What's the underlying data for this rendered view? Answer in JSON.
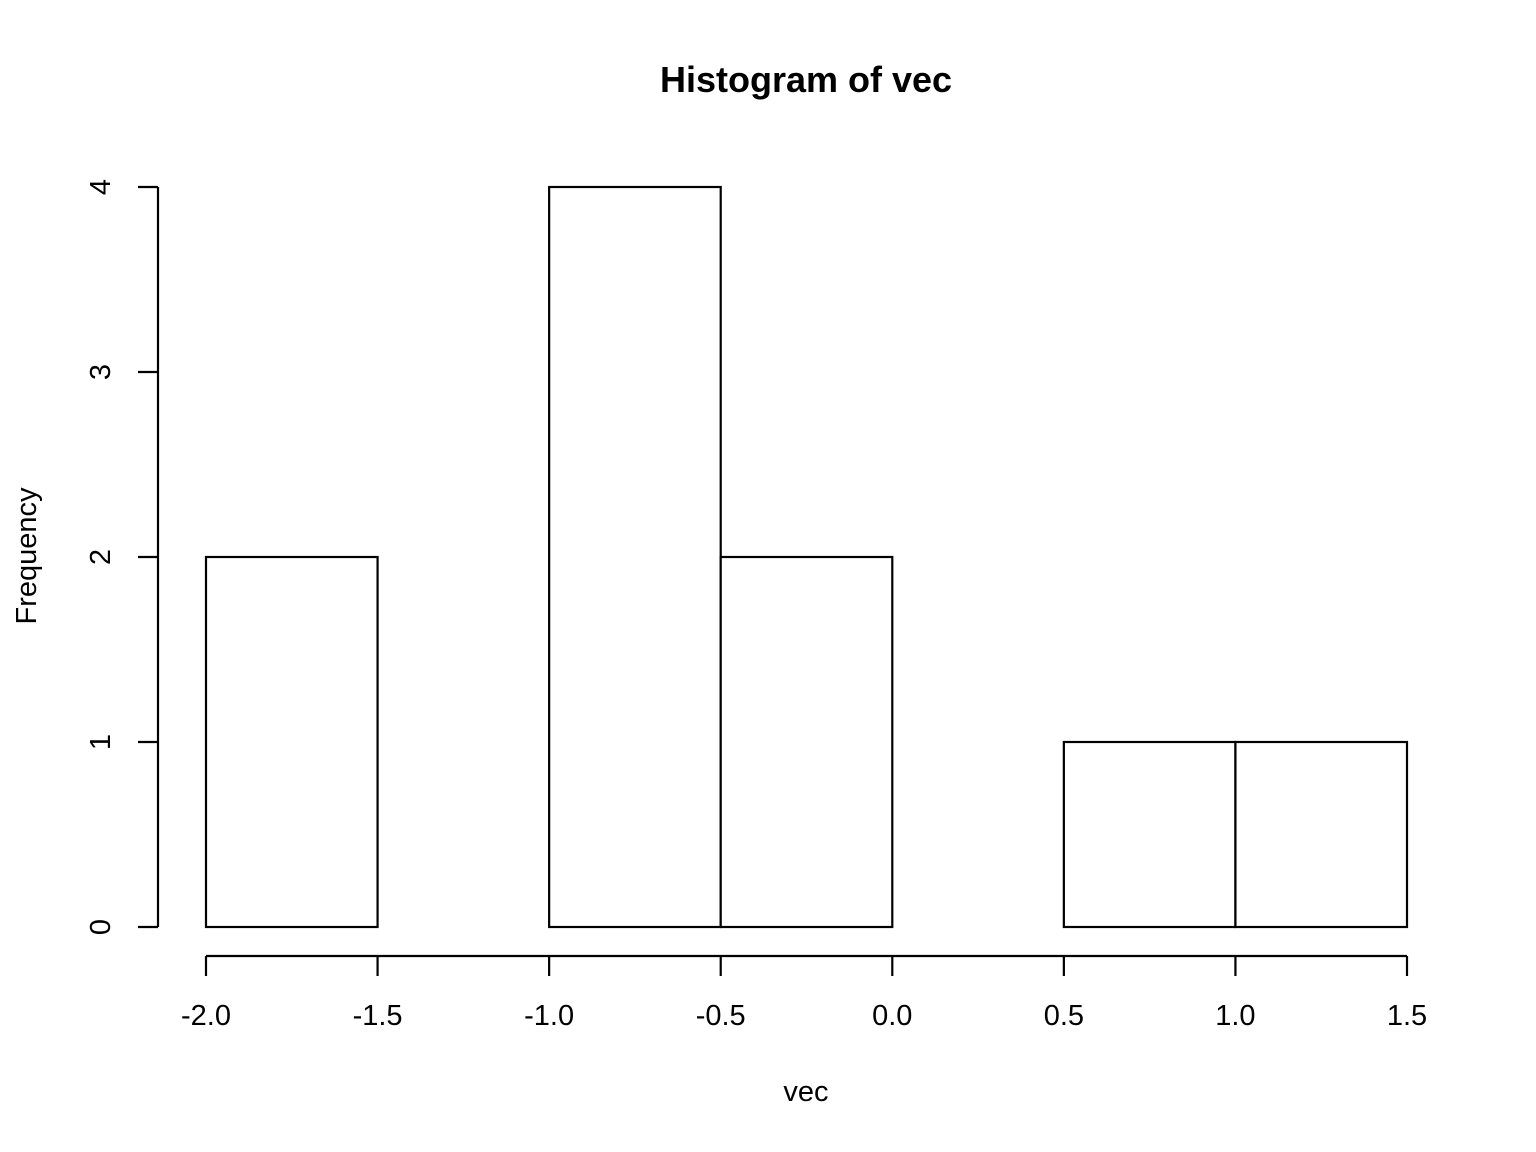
{
  "chart_data": {
    "type": "bar",
    "title": "Histogram of vec",
    "xlabel": "vec",
    "ylabel": "Frequency",
    "bins": [
      {
        "from": -2.0,
        "to": -1.5,
        "count": 2
      },
      {
        "from": -1.5,
        "to": -1.0,
        "count": 0
      },
      {
        "from": -1.0,
        "to": -0.5,
        "count": 4
      },
      {
        "from": -0.5,
        "to": 0.0,
        "count": 2
      },
      {
        "from": 0.0,
        "to": 0.5,
        "count": 0
      },
      {
        "from": 0.5,
        "to": 1.0,
        "count": 1
      },
      {
        "from": 1.0,
        "to": 1.5,
        "count": 1
      }
    ],
    "xlim": [
      -2.0,
      1.5
    ],
    "ylim": [
      0,
      4
    ],
    "x_ticks": [
      -2.0,
      -1.5,
      -1.0,
      -0.5,
      0.0,
      0.5,
      1.0,
      1.5
    ],
    "x_tick_labels": [
      "-2.0",
      "-1.5",
      "-1.0",
      "-0.5",
      "0.0",
      "0.5",
      "1.0",
      "1.5"
    ],
    "y_ticks": [
      0,
      1,
      2,
      3,
      4
    ],
    "y_tick_labels": [
      "0",
      "1",
      "2",
      "3",
      "4"
    ],
    "grid": false,
    "legend": "none"
  }
}
